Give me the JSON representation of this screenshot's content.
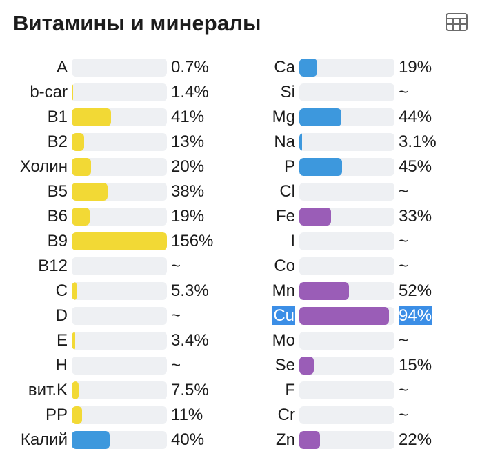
{
  "header": {
    "title": "Витамины и минералы",
    "table_icon": "table-grid-icon"
  },
  "colors": {
    "yellow": "#f2d935",
    "blue": "#3d98dd",
    "purple": "#9a5db7",
    "track": "#eef0f3",
    "selection": "#3b8ee6"
  },
  "vitamins": [
    {
      "label": "A",
      "value": "0.7%",
      "fill": 0.007,
      "color": "yellow"
    },
    {
      "label": "b-car",
      "value": "1.4%",
      "fill": 0.014,
      "color": "yellow"
    },
    {
      "label": "B1",
      "value": "41%",
      "fill": 0.41,
      "color": "yellow"
    },
    {
      "label": "B2",
      "value": "13%",
      "fill": 0.13,
      "color": "yellow"
    },
    {
      "label": "Холин",
      "value": "20%",
      "fill": 0.2,
      "color": "yellow"
    },
    {
      "label": "B5",
      "value": "38%",
      "fill": 0.38,
      "color": "yellow"
    },
    {
      "label": "B6",
      "value": "19%",
      "fill": 0.19,
      "color": "yellow"
    },
    {
      "label": "B9",
      "value": "156%",
      "fill": 1.0,
      "color": "yellow"
    },
    {
      "label": "B12",
      "value": "~",
      "fill": 0,
      "color": "yellow"
    },
    {
      "label": "C",
      "value": "5.3%",
      "fill": 0.053,
      "color": "yellow"
    },
    {
      "label": "D",
      "value": "~",
      "fill": 0,
      "color": "yellow"
    },
    {
      "label": "E",
      "value": "3.4%",
      "fill": 0.034,
      "color": "yellow"
    },
    {
      "label": "H",
      "value": "~",
      "fill": 0,
      "color": "yellow"
    },
    {
      "label": "вит.K",
      "value": "7.5%",
      "fill": 0.075,
      "color": "yellow"
    },
    {
      "label": "PP",
      "value": "11%",
      "fill": 0.11,
      "color": "yellow"
    },
    {
      "label": "Калий",
      "value": "40%",
      "fill": 0.4,
      "color": "blue"
    }
  ],
  "minerals": [
    {
      "label": "Ca",
      "value": "19%",
      "fill": 0.19,
      "color": "blue"
    },
    {
      "label": "Si",
      "value": "~",
      "fill": 0,
      "color": "blue"
    },
    {
      "label": "Mg",
      "value": "44%",
      "fill": 0.44,
      "color": "blue"
    },
    {
      "label": "Na",
      "value": "3.1%",
      "fill": 0.031,
      "color": "blue"
    },
    {
      "label": "P",
      "value": "45%",
      "fill": 0.45,
      "color": "blue"
    },
    {
      "label": "Cl",
      "value": "~",
      "fill": 0,
      "color": "blue"
    },
    {
      "label": "Fe",
      "value": "33%",
      "fill": 0.33,
      "color": "purple"
    },
    {
      "label": "I",
      "value": "~",
      "fill": 0,
      "color": "purple"
    },
    {
      "label": "Co",
      "value": "~",
      "fill": 0,
      "color": "purple"
    },
    {
      "label": "Mn",
      "value": "52%",
      "fill": 0.52,
      "color": "purple"
    },
    {
      "label": "Cu",
      "value": "94%",
      "fill": 0.94,
      "color": "purple",
      "selected": true
    },
    {
      "label": "Mo",
      "value": "~",
      "fill": 0,
      "color": "purple"
    },
    {
      "label": "Se",
      "value": "15%",
      "fill": 0.15,
      "color": "purple"
    },
    {
      "label": "F",
      "value": "~",
      "fill": 0,
      "color": "purple"
    },
    {
      "label": "Cr",
      "value": "~",
      "fill": 0,
      "color": "purple"
    },
    {
      "label": "Zn",
      "value": "22%",
      "fill": 0.22,
      "color": "purple"
    }
  ]
}
